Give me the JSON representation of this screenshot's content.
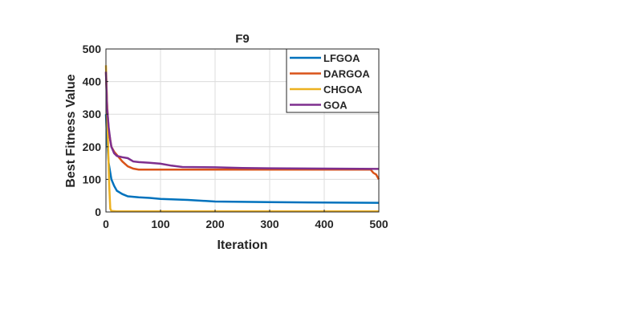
{
  "chart_data": {
    "type": "line",
    "title": "F9",
    "xlabel": "Iteration",
    "ylabel": "Best Fitness Value",
    "xlim": [
      0,
      500
    ],
    "ylim": [
      0,
      500
    ],
    "xticks": [
      0,
      100,
      200,
      300,
      400,
      500
    ],
    "yticks": [
      0,
      100,
      200,
      300,
      400,
      500
    ],
    "grid": true,
    "legend_position": "top-right",
    "series": [
      {
        "name": "LFGOA",
        "color": "#0072BD",
        "x": [
          0,
          2,
          5,
          10,
          15,
          20,
          30,
          40,
          60,
          80,
          100,
          150,
          200,
          250,
          300,
          400,
          500
        ],
        "y": [
          300,
          220,
          150,
          100,
          80,
          65,
          55,
          48,
          45,
          43,
          40,
          37,
          32,
          31,
          30,
          29,
          28
        ]
      },
      {
        "name": "DARGOA",
        "color": "#D95319",
        "x": [
          0,
          2,
          5,
          10,
          15,
          20,
          30,
          40,
          50,
          60,
          100,
          200,
          300,
          400,
          485,
          490,
          495,
          500
        ],
        "y": [
          430,
          330,
          250,
          200,
          185,
          175,
          155,
          140,
          133,
          130,
          130,
          130,
          130,
          130,
          130,
          120,
          115,
          100
        ]
      },
      {
        "name": "CHGOA",
        "color": "#EDB120",
        "x": [
          0,
          2,
          4,
          6,
          8,
          10,
          20,
          100,
          500
        ],
        "y": [
          450,
          330,
          200,
          80,
          10,
          3,
          2,
          2,
          2
        ]
      },
      {
        "name": "GOA",
        "color": "#7E2F8E",
        "x": [
          0,
          2,
          5,
          8,
          10,
          15,
          20,
          30,
          40,
          50,
          60,
          80,
          100,
          120,
          140,
          200,
          250,
          300,
          400,
          500
        ],
        "y": [
          430,
          320,
          260,
          220,
          200,
          180,
          172,
          168,
          165,
          155,
          153,
          151,
          148,
          142,
          138,
          137,
          135,
          134,
          133,
          132
        ]
      }
    ]
  }
}
